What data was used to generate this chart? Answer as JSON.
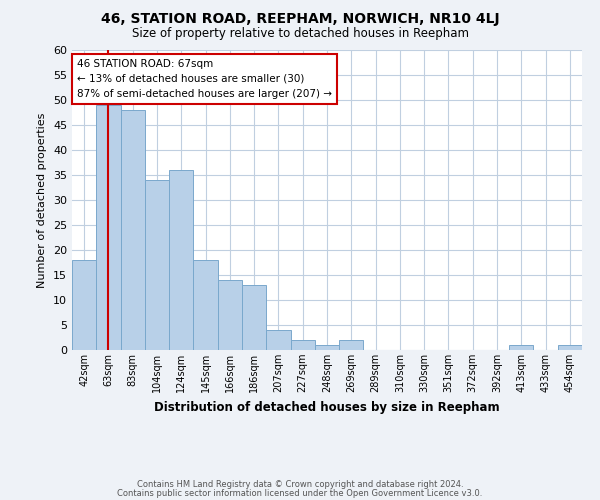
{
  "title": "46, STATION ROAD, REEPHAM, NORWICH, NR10 4LJ",
  "subtitle": "Size of property relative to detached houses in Reepham",
  "xlabel": "Distribution of detached houses by size in Reepham",
  "ylabel": "Number of detached properties",
  "footnote1": "Contains HM Land Registry data © Crown copyright and database right 2024.",
  "footnote2": "Contains public sector information licensed under the Open Government Licence v3.0.",
  "annotation_title": "46 STATION ROAD: 67sqm",
  "annotation_line2": "← 13% of detached houses are smaller (30)",
  "annotation_line3": "87% of semi-detached houses are larger (207) →",
  "categories": [
    "42sqm",
    "63sqm",
    "83sqm",
    "104sqm",
    "124sqm",
    "145sqm",
    "166sqm",
    "186sqm",
    "207sqm",
    "227sqm",
    "248sqm",
    "269sqm",
    "289sqm",
    "310sqm",
    "330sqm",
    "351sqm",
    "372sqm",
    "392sqm",
    "413sqm",
    "433sqm",
    "454sqm"
  ],
  "values": [
    18,
    49,
    48,
    34,
    36,
    18,
    14,
    13,
    4,
    2,
    1,
    2,
    0,
    0,
    0,
    0,
    0,
    0,
    1,
    0,
    1
  ],
  "bar_color": "#b8d0e8",
  "bar_edge_color": "#7aa8cc",
  "ylim": [
    0,
    60
  ],
  "yticks": [
    0,
    5,
    10,
    15,
    20,
    25,
    30,
    35,
    40,
    45,
    50,
    55,
    60
  ],
  "bg_color": "#eef2f7",
  "plot_bg_color": "#ffffff",
  "grid_color": "#c0cfe0",
  "annotation_box_color": "#ffffff",
  "annotation_border_color": "#cc0000",
  "property_line_color": "#cc0000",
  "property_line_xidx": 1
}
